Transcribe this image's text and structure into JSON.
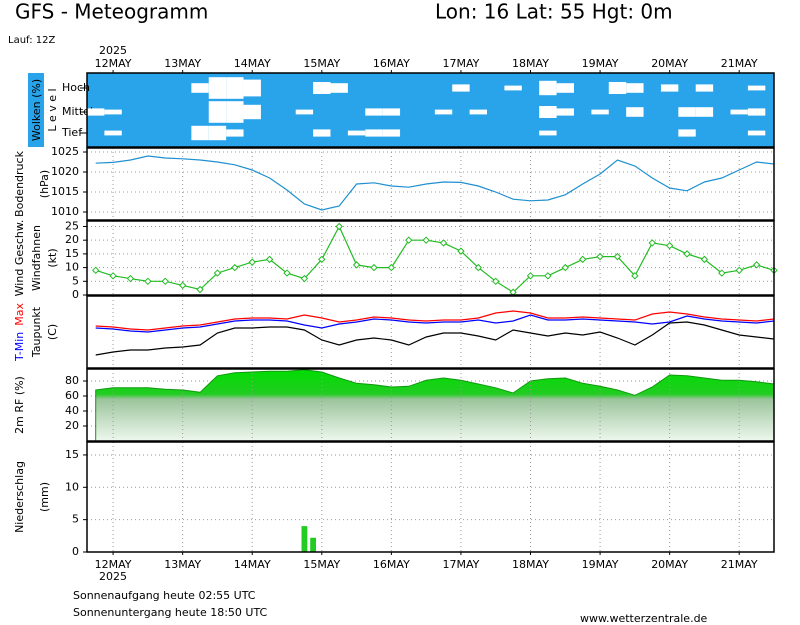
{
  "header": {
    "title": "GFS - Meteogramm",
    "location": "Lon: 16 Lat: 55 Hgt: 0m",
    "run": "Lauf: 12Z"
  },
  "x_axis": {
    "year": "2025",
    "xlim": [
      -9,
      228
    ],
    "xticks": [
      {
        "value": 0,
        "label": "12MAY"
      },
      {
        "value": 24,
        "label": "13MAY"
      },
      {
        "value": 48,
        "label": "14MAY"
      },
      {
        "value": 72,
        "label": "15MAY"
      },
      {
        "value": 96,
        "label": "16MAY"
      },
      {
        "value": 120,
        "label": "17MAY"
      },
      {
        "value": 144,
        "label": "18MAY"
      },
      {
        "value": 168,
        "label": "19MAY"
      },
      {
        "value": 192,
        "label": "20MAY"
      },
      {
        "value": 216,
        "label": "21MAY"
      }
    ]
  },
  "chart_data": [
    {
      "type": "cloud",
      "ylabel": "Wolken (%)",
      "sublabel": "L e v e l",
      "background": "#29a3ea",
      "x": [
        -6,
        0,
        6,
        12,
        18,
        24,
        30,
        36,
        42,
        48,
        54,
        60,
        66,
        72,
        78,
        84,
        90,
        96,
        102,
        108,
        114,
        120,
        126,
        132,
        138,
        144,
        150,
        156,
        162,
        168,
        174,
        180,
        186,
        192,
        198,
        204,
        210,
        216,
        222,
        228
      ],
      "series": [
        {
          "name": "Hoch",
          "color": "#ffffff",
          "values": [
            0,
            0,
            0,
            0,
            0,
            0,
            40,
            90,
            90,
            70,
            0,
            0,
            0,
            50,
            40,
            0,
            0,
            0,
            0,
            0,
            0,
            30,
            0,
            0,
            20,
            0,
            60,
            40,
            0,
            0,
            50,
            40,
            0,
            30,
            0,
            30,
            0,
            0,
            20,
            0
          ]
        },
        {
          "name": "Mittel",
          "color": "#ffffff",
          "values": [
            30,
            20,
            0,
            0,
            0,
            0,
            0,
            90,
            90,
            60,
            0,
            0,
            20,
            0,
            0,
            0,
            30,
            30,
            0,
            0,
            20,
            0,
            20,
            0,
            0,
            0,
            50,
            30,
            0,
            20,
            0,
            40,
            0,
            0,
            40,
            40,
            0,
            20,
            30,
            0
          ]
        },
        {
          "name": "Tief",
          "color": "#ffffff",
          "values": [
            0,
            20,
            0,
            0,
            0,
            0,
            60,
            60,
            30,
            0,
            0,
            0,
            0,
            30,
            0,
            20,
            30,
            30,
            0,
            0,
            0,
            0,
            0,
            0,
            0,
            0,
            20,
            0,
            0,
            0,
            0,
            0,
            0,
            0,
            30,
            0,
            0,
            0,
            20,
            0
          ]
        }
      ]
    },
    {
      "type": "line",
      "ylabel": "Bodendruck",
      "unit": "(hPa)",
      "color": "#1e90d0",
      "grid": true,
      "x": [
        -6,
        0,
        6,
        12,
        18,
        24,
        30,
        36,
        42,
        48,
        54,
        60,
        66,
        72,
        78,
        84,
        90,
        96,
        102,
        108,
        114,
        120,
        126,
        132,
        138,
        144,
        150,
        156,
        162,
        168,
        174,
        180,
        186,
        192,
        198,
        204,
        210,
        216,
        222,
        228
      ],
      "values": [
        1022.2,
        1022.4,
        1023,
        1024,
        1023.5,
        1023.3,
        1023,
        1022.5,
        1021.8,
        1020.5,
        1018.5,
        1015.5,
        1012,
        1010.5,
        1011.5,
        1017,
        1017.3,
        1016.5,
        1016.2,
        1017,
        1017.5,
        1017.4,
        1016.5,
        1015,
        1013.2,
        1012.8,
        1013,
        1014.3,
        1017,
        1019.5,
        1023,
        1021.5,
        1018.5,
        1016,
        1015.3,
        1017.5,
        1018.5,
        1020.5,
        1022.5,
        1022
      ],
      "ylim": [
        1008,
        1026
      ],
      "yticks": [
        1010,
        1015,
        1020,
        1025
      ]
    },
    {
      "type": "line",
      "ylabel": "Wind Geschw.",
      "sublabel": "Windfahnen",
      "unit": "(kt)",
      "color": "#22bb22",
      "markers": true,
      "grid": true,
      "x": [
        -6,
        0,
        6,
        12,
        18,
        24,
        30,
        36,
        42,
        48,
        54,
        60,
        66,
        72,
        78,
        84,
        90,
        96,
        102,
        108,
        114,
        120,
        126,
        132,
        138,
        144,
        150,
        156,
        162,
        168,
        174,
        180,
        186,
        192,
        198,
        204,
        210,
        216,
        222,
        228
      ],
      "values": [
        9,
        7,
        6,
        5,
        5,
        3.5,
        2,
        8,
        10,
        12,
        13,
        8,
        6,
        13,
        25,
        11,
        10,
        10,
        20,
        20,
        19,
        16,
        10,
        5,
        1,
        7,
        7,
        10,
        13,
        14,
        14,
        7,
        19,
        18,
        15,
        13,
        8,
        9,
        11,
        9
      ],
      "ylim": [
        0,
        27
      ],
      "yticks": [
        0,
        5,
        10,
        15,
        20,
        25
      ]
    },
    {
      "type": "line",
      "sublabel": "Taupunkt",
      "unit": "(C)",
      "grid": true,
      "x": [
        -6,
        0,
        6,
        12,
        18,
        24,
        30,
        36,
        42,
        48,
        54,
        60,
        66,
        72,
        78,
        84,
        90,
        96,
        102,
        108,
        114,
        120,
        126,
        132,
        138,
        144,
        150,
        156,
        162,
        168,
        174,
        180,
        186,
        192,
        198,
        204,
        210,
        216,
        222,
        228
      ],
      "series": [
        {
          "name": "T-Min",
          "color": "#0000ff",
          "values": [
            10,
            9.75,
            9.25,
            9,
            9.5,
            10,
            10.25,
            11,
            11.75,
            12,
            12,
            11.75,
            10.75,
            10,
            11,
            11.5,
            12.25,
            12,
            11.5,
            11.25,
            11.5,
            11.5,
            12,
            11.25,
            11.75,
            13.25,
            12,
            12,
            12.25,
            12,
            11.75,
            11.5,
            11,
            11.5,
            13,
            12.25,
            11.75,
            11.5,
            11.25,
            11.75
          ]
        },
        {
          "name": "Max",
          "color": "#ff0000",
          "values": [
            10.5,
            10.25,
            9.75,
            9.5,
            10,
            10.5,
            10.75,
            11.5,
            12.25,
            12.5,
            12.5,
            12.25,
            13.25,
            12.5,
            11.5,
            12,
            12.75,
            12.5,
            12,
            11.75,
            12,
            12,
            12.5,
            13.75,
            14.25,
            13.75,
            12.5,
            12.5,
            12.75,
            12.5,
            12.25,
            12,
            13.5,
            14,
            13.5,
            12.75,
            12.25,
            12,
            11.75,
            12.25
          ]
        },
        {
          "name": "Taupunkt",
          "color": "#000000",
          "values": [
            3.25,
            4,
            4.5,
            4.5,
            5,
            5.25,
            5.75,
            8.75,
            10,
            10,
            10.25,
            10.25,
            9.5,
            7,
            5.75,
            7,
            7.5,
            7,
            5.75,
            7.75,
            8.75,
            8.75,
            8,
            7,
            9.5,
            8.75,
            8,
            8.75,
            8.25,
            9,
            7.5,
            5.75,
            8.25,
            11.25,
            11.5,
            10.75,
            9.5,
            8.25,
            7.75,
            7.25
          ]
        }
      ],
      "ylim": [
        0,
        18
      ]
    },
    {
      "type": "area",
      "ylabel": "2m RF (%)",
      "color": "#22cc22",
      "grid": true,
      "x": [
        -6,
        0,
        6,
        12,
        18,
        24,
        30,
        36,
        42,
        48,
        54,
        60,
        66,
        72,
        78,
        84,
        90,
        96,
        102,
        108,
        114,
        120,
        126,
        132,
        138,
        144,
        150,
        156,
        162,
        168,
        174,
        180,
        186,
        192,
        198,
        204,
        210,
        216,
        222,
        228
      ],
      "values": [
        68,
        71,
        71,
        71,
        69,
        68,
        65,
        87,
        91,
        92,
        93,
        93,
        95,
        92,
        84,
        77,
        75,
        72,
        73,
        81,
        84,
        81,
        76,
        71,
        64,
        80,
        83,
        84,
        77,
        73,
        68,
        61,
        72,
        88,
        87,
        84,
        81,
        81,
        79,
        76
      ],
      "ylim": [
        0,
        96
      ],
      "yticks": [
        20,
        40,
        60,
        80
      ]
    },
    {
      "type": "bar",
      "ylabel": "Niederschlag",
      "unit": "(mm)",
      "color": "#22cc22",
      "grid": true,
      "x": [
        66,
        69
      ],
      "values": [
        4,
        2.2
      ],
      "ylim": [
        0,
        17
      ],
      "yticks": [
        0,
        5,
        10,
        15
      ]
    }
  ],
  "footer": {
    "sunrise": "Sonnenaufgang heute 02:55 UTC",
    "sunset": "Sonnenuntergang heute 18:50 UTC",
    "source": "www.wetterzentrale.de"
  }
}
